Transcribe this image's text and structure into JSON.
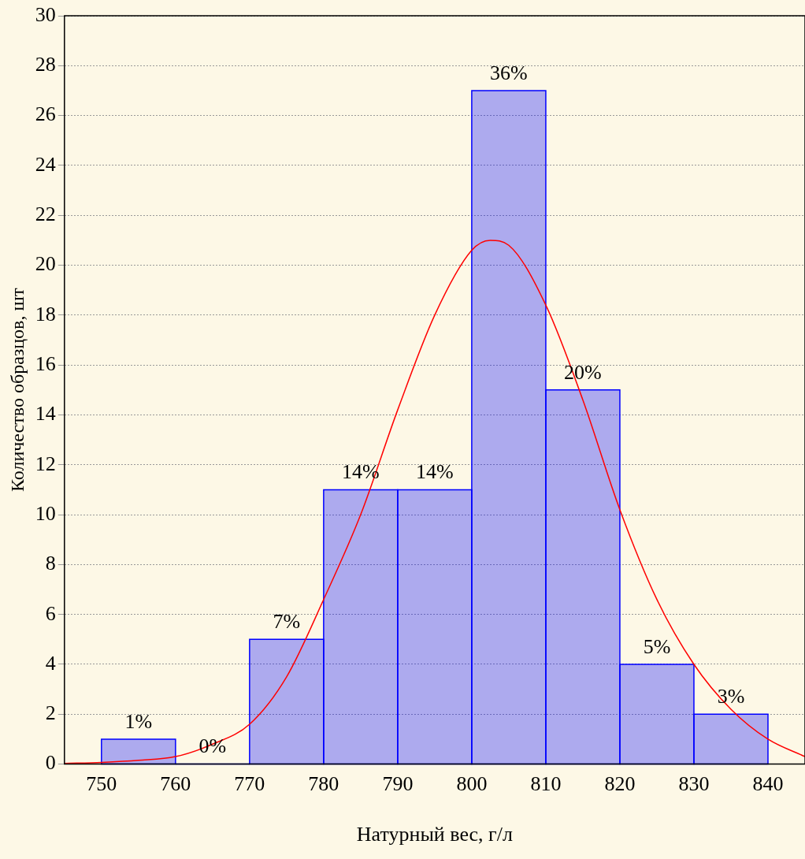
{
  "chart_data": {
    "type": "histogram",
    "xlabel": "Натурный вес, г/л",
    "ylabel": "Количество образцов, шт",
    "bins": [
      750,
      760,
      770,
      780,
      790,
      800,
      810,
      820,
      830,
      840
    ],
    "values": [
      1,
      0,
      5,
      11,
      11,
      27,
      15,
      4,
      2
    ],
    "annotations": [
      {
        "text": "1%",
        "x": 755,
        "y": 1
      },
      {
        "text": "0%",
        "x": 765,
        "y": 0
      },
      {
        "text": "7%",
        "x": 775,
        "y": 5
      },
      {
        "text": "14%",
        "x": 785,
        "y": 11
      },
      {
        "text": "14%",
        "x": 795,
        "y": 11
      },
      {
        "text": "36%",
        "x": 805,
        "y": 27
      },
      {
        "text": "20%",
        "x": 815,
        "y": 15
      },
      {
        "text": "5%",
        "x": 825,
        "y": 4
      },
      {
        "text": "3%",
        "x": 835,
        "y": 2
      }
    ],
    "color": "#0000ff",
    "series": [
      {
        "type": "line",
        "color": "#ff0000",
        "x": [
          745,
          750,
          755,
          760,
          765,
          770,
          775,
          780,
          785,
          790,
          795,
          800,
          802.5,
          805,
          810,
          815,
          820,
          825,
          830,
          835,
          840,
          845
        ],
        "values": [
          0.03,
          0.07,
          0.15,
          0.3,
          0.8,
          1.6,
          3.5,
          6.6,
          10,
          14.2,
          18,
          20.6,
          21,
          20.8,
          18.4,
          14.6,
          10.2,
          6.6,
          4,
          2.2,
          1,
          0.3
        ]
      }
    ],
    "xlim": [
      745,
      845
    ],
    "xticks": [
      750,
      760,
      770,
      780,
      790,
      800,
      810,
      820,
      830,
      840
    ],
    "ylim": [
      0,
      30
    ],
    "yticks": [
      0,
      2,
      4,
      6,
      8,
      10,
      12,
      14,
      16,
      18,
      20,
      22,
      24,
      26,
      28,
      30
    ],
    "grid": "y",
    "legend": false
  }
}
